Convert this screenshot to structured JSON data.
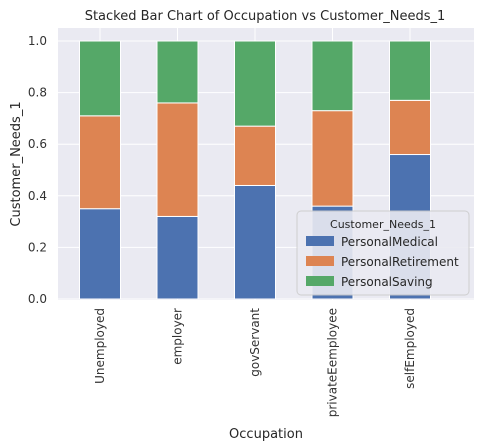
{
  "chart_data": {
    "type": "bar",
    "stacked": true,
    "title": "Stacked Bar Chart of Occupation vs Customer_Needs_1",
    "xlabel": "Occupation",
    "ylabel": "Customer_Needs_1",
    "ylim": [
      0,
      1.0
    ],
    "yticks": [
      "0.0",
      "0.2",
      "0.4",
      "0.6",
      "0.8",
      "1.0"
    ],
    "categories": [
      "Unemployed",
      "employer",
      "govServant",
      "privateEemployee",
      "selfEmployed"
    ],
    "series": [
      {
        "name": "PersonalMedical",
        "color": "#4c72b0",
        "values": [
          0.35,
          0.32,
          0.44,
          0.36,
          0.56
        ]
      },
      {
        "name": "PersonalRetirement",
        "color": "#dd8452",
        "values": [
          0.36,
          0.44,
          0.23,
          0.37,
          0.21
        ]
      },
      {
        "name": "PersonalSaving",
        "color": "#55a868",
        "values": [
          0.29,
          0.24,
          0.33,
          0.27,
          0.23
        ]
      }
    ],
    "legend": {
      "title": "Customer_Needs_1",
      "placement": "lower-right"
    },
    "grid": true,
    "background": "#eaeaf2"
  }
}
